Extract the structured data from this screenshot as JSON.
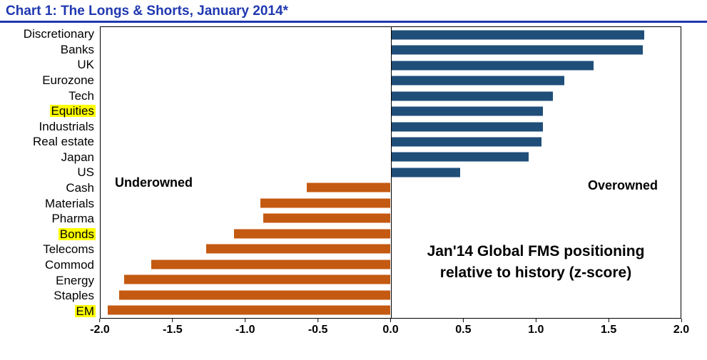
{
  "title": "Chart 1: The Longs & Shorts, January 2014*",
  "annotations": {
    "left": "Underowned",
    "right": "Overowned",
    "note_line1": "Jan'14 Global FMS positioning",
    "note_line2": "relative to history (z-score)"
  },
  "colors": {
    "title": "#2038B0",
    "positive": "#1F4E79",
    "negative": "#C45911",
    "highlight": "#FFFF00"
  },
  "chart_data": {
    "type": "bar",
    "orientation": "horizontal",
    "title": "Jan'14 Global FMS positioning relative to history (z-score)",
    "xlabel": "z-score",
    "ylabel": "",
    "grid": false,
    "legend": "none",
    "xlim": [
      -2.0,
      2.0
    ],
    "xticks": [
      -2.0,
      -1.5,
      -1.0,
      -0.5,
      0.0,
      0.5,
      1.0,
      1.5,
      2.0
    ],
    "categories": [
      "Discretionary",
      "Banks",
      "UK",
      "Eurozone",
      "Tech",
      "Equities",
      "Industrials",
      "Real estate",
      "Japan",
      "US",
      "Cash",
      "Materials",
      "Pharma",
      "Bonds",
      "Telecoms",
      "Commod",
      "Energy",
      "Staples",
      "EM"
    ],
    "values": [
      1.75,
      1.74,
      1.4,
      1.2,
      1.12,
      1.05,
      1.05,
      1.04,
      0.95,
      0.48,
      -0.58,
      -0.9,
      -0.88,
      -1.08,
      -1.27,
      -1.65,
      -1.84,
      -1.87,
      -1.95
    ],
    "highlighted": [
      "Equities",
      "Bonds",
      "EM"
    ]
  }
}
